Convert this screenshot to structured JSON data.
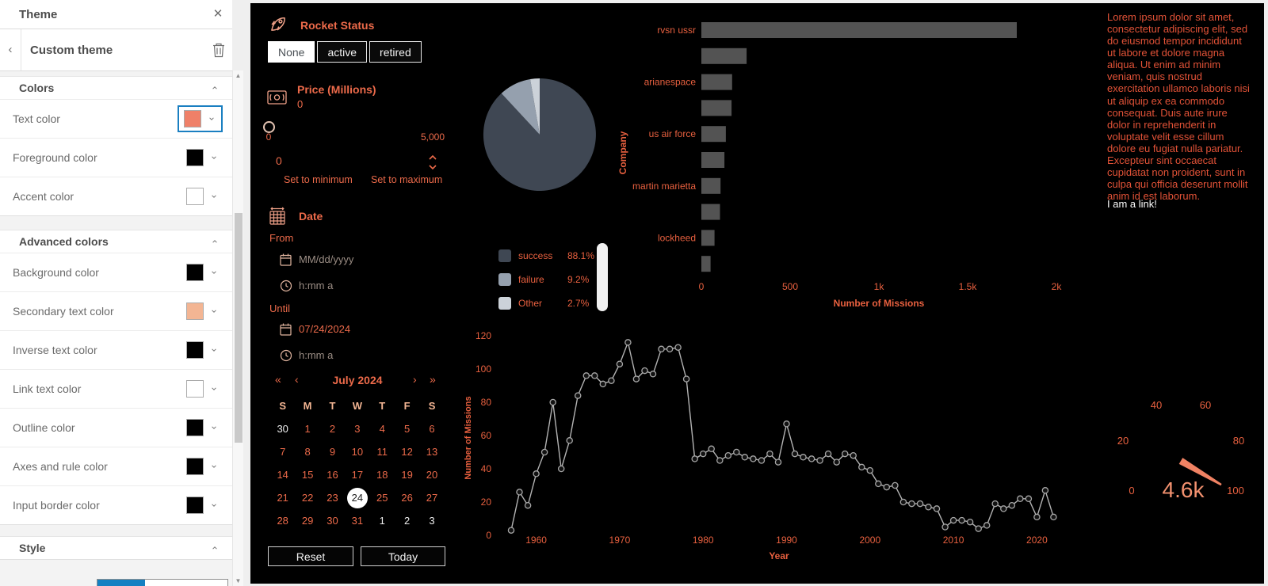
{
  "theme_panel": {
    "title": "Theme",
    "breadcrumb": "Custom theme",
    "sections": [
      {
        "id": "colors",
        "label": "Colors",
        "rows": [
          {
            "label": "Text color",
            "swatch": "#ef8068",
            "selected": true
          },
          {
            "label": "Foreground color",
            "swatch": "#000000",
            "selected": false
          },
          {
            "label": "Accent color",
            "swatch": "#ffffff",
            "selected": false
          }
        ]
      },
      {
        "id": "advanced",
        "label": "Advanced colors",
        "rows": [
          {
            "label": "Background color",
            "swatch": "#000000",
            "selected": false
          },
          {
            "label": "Secondary text color",
            "swatch": "#f3b593",
            "selected": false
          },
          {
            "label": "Inverse text color",
            "swatch": "#000000",
            "selected": false
          },
          {
            "label": "Link text color",
            "swatch": "#ffffff",
            "selected": false
          },
          {
            "label": "Outline color",
            "swatch": "#000000",
            "selected": false
          },
          {
            "label": "Axes and rule color",
            "swatch": "#000000",
            "selected": false
          },
          {
            "label": "Input border color",
            "swatch": "#000000",
            "selected": false
          }
        ]
      },
      {
        "id": "style",
        "label": "Style",
        "rows": []
      }
    ]
  },
  "dashboard": {
    "accent_color": "#ec6a4a",
    "secondary_color": "#f3b593",
    "rocket_status": {
      "title": "Rocket Status",
      "buttons": [
        {
          "label": "None",
          "active": true
        },
        {
          "label": "active",
          "active": false
        },
        {
          "label": "retired",
          "active": false
        }
      ]
    },
    "price": {
      "title": "Price (Millions)",
      "value": "0",
      "slider_min_label": "0",
      "slider_max_label": "5,000",
      "input_value": "0",
      "min_link": "Set to minimum",
      "max_link": "Set to maximum"
    },
    "date": {
      "title": "Date",
      "from_label": "From",
      "date_placeholder": "MM/dd/yyyy",
      "time_placeholder": "h:mm a",
      "until_label": "Until",
      "until_date": "07/24/2024"
    },
    "calendar": {
      "prev_year": "«",
      "prev_month": "‹",
      "month_label": "July 2024",
      "next_month": "›",
      "next_year": "»",
      "day_headers": [
        "S",
        "M",
        "T",
        "W",
        "T",
        "F",
        "S"
      ],
      "weeks": [
        [
          {
            "d": "30",
            "out": true
          },
          {
            "d": "1"
          },
          {
            "d": "2"
          },
          {
            "d": "3"
          },
          {
            "d": "4"
          },
          {
            "d": "5"
          },
          {
            "d": "6"
          }
        ],
        [
          {
            "d": "7"
          },
          {
            "d": "8"
          },
          {
            "d": "9"
          },
          {
            "d": "10"
          },
          {
            "d": "11"
          },
          {
            "d": "12"
          },
          {
            "d": "13"
          }
        ],
        [
          {
            "d": "14"
          },
          {
            "d": "15"
          },
          {
            "d": "16"
          },
          {
            "d": "17"
          },
          {
            "d": "18"
          },
          {
            "d": "19"
          },
          {
            "d": "20"
          }
        ],
        [
          {
            "d": "21"
          },
          {
            "d": "22"
          },
          {
            "d": "23"
          },
          {
            "d": "24",
            "selected": true
          },
          {
            "d": "25"
          },
          {
            "d": "26"
          },
          {
            "d": "27"
          }
        ],
        [
          {
            "d": "28"
          },
          {
            "d": "29"
          },
          {
            "d": "30"
          },
          {
            "d": "31"
          },
          {
            "d": "1",
            "out": true
          },
          {
            "d": "2",
            "out": true
          },
          {
            "d": "3",
            "out": true
          }
        ]
      ],
      "reset_label": "Reset",
      "today_label": "Today"
    },
    "text_block": {
      "paragraph": "Lorem ipsum dolor sit amet, consectetur adipiscing elit, sed do eiusmod tempor incididunt ut labore et dolore magna aliqua. Ut enim ad minim veniam, quis nostrud exercitation ullamco laboris nisi ut aliquip ex ea commodo consequat. Duis aute irure dolor in reprehenderit in voluptate velit esse cillum dolore eu fugiat nulla pariatur. Excepteur sint occaecat cupidatat non proident, sunt in culpa qui officia deserunt mollit anim id est laborum.",
      "link_text": "I am a link!"
    }
  },
  "chart_data": [
    {
      "type": "pie",
      "name": "mission-status-pie",
      "labels": [
        "success",
        "failure",
        "Other"
      ],
      "values": [
        88.1,
        9.2,
        2.7
      ],
      "unit": "%",
      "colors": [
        "#3f4753",
        "#95a0ae",
        "#ccd2d9"
      ],
      "legend_entries": [
        {
          "label": "success",
          "pct": "88.1%"
        },
        {
          "label": "failure",
          "pct": "9.2%"
        },
        {
          "label": "Other",
          "pct": "2.7%"
        }
      ],
      "legend_position": "below-left"
    },
    {
      "type": "bar",
      "name": "missions-by-company",
      "orientation": "horizontal",
      "categories": [
        "rvsn ussr",
        "",
        "arianespace",
        "",
        "us air force",
        "",
        "martin marietta",
        "",
        "lockheed",
        ""
      ],
      "values": [
        1777,
        255,
        173,
        170,
        138,
        130,
        108,
        105,
        74,
        52
      ],
      "xlabel": "Number of Missions",
      "ylabel": "Company",
      "xticks": [
        "0",
        "500",
        "1k",
        "1.5k",
        "2k"
      ],
      "xtick_values": [
        0,
        500,
        1000,
        1500,
        2000
      ],
      "xlim": [
        0,
        2000
      ],
      "bar_color": "#535353",
      "grid": false
    },
    {
      "type": "line",
      "name": "missions-by-year",
      "xlabel": "Year",
      "ylabel": "Number of Missions",
      "x_range": [
        1957,
        2022
      ],
      "y": [
        3,
        26,
        18,
        37,
        50,
        80,
        40,
        57,
        84,
        96,
        96,
        91,
        93,
        103,
        116,
        94,
        99,
        97,
        112,
        112,
        113,
        94,
        46,
        49,
        52,
        45,
        48,
        50,
        47,
        46,
        45,
        49,
        44,
        67,
        49,
        47,
        46,
        45,
        49,
        44,
        49,
        48,
        41,
        39,
        31,
        29,
        30,
        20,
        19,
        19,
        17,
        16,
        5,
        9,
        9,
        8,
        4,
        6,
        19,
        16,
        18,
        22,
        22,
        11,
        27,
        11
      ],
      "yticks": [
        0,
        20,
        40,
        60,
        80,
        100,
        120
      ],
      "xticks": [
        1960,
        1970,
        1980,
        1990,
        2000,
        2010,
        2020
      ],
      "ylim": [
        0,
        120
      ],
      "line_color": "#b3b3b3",
      "marker": "open-circle",
      "grid": false
    },
    {
      "type": "gauge",
      "name": "total-gauge",
      "value_label": "4.6k",
      "ticks": [
        "0",
        "20",
        "40",
        "60",
        "80",
        "100"
      ],
      "tick_min": 0,
      "tick_max": 100,
      "needle_color": "#f08263",
      "value_color": "#f2916f"
    }
  ]
}
